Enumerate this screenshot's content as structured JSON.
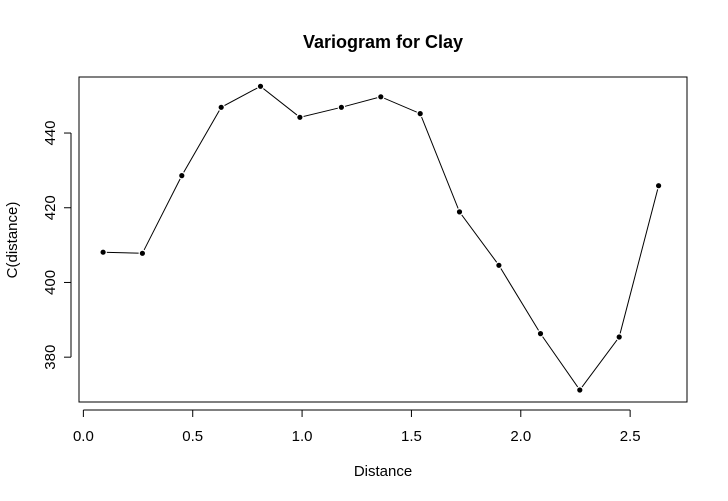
{
  "chart_data": {
    "type": "line",
    "title": "Variogram for Clay",
    "xlabel": "Distance",
    "ylabel": "C(distance)",
    "xlim": [
      -0.02,
      2.76
    ],
    "ylim": [
      368,
      455
    ],
    "x_ticks": [
      0.0,
      0.5,
      1.0,
      1.5,
      2.0,
      2.5
    ],
    "x_tick_labels": [
      "0.0",
      "0.5",
      "1.0",
      "1.5",
      "2.0",
      "2.5"
    ],
    "y_ticks": [
      380,
      400,
      420,
      440
    ],
    "y_tick_labels": [
      "380",
      "400",
      "420",
      "440"
    ],
    "grid": false,
    "series": [
      {
        "x": [
          0.09,
          0.27,
          0.45,
          0.63,
          0.81,
          0.99,
          1.18,
          1.36,
          1.54,
          1.72,
          1.9,
          2.09,
          2.27,
          2.45,
          2.63
        ],
        "y": [
          408.1,
          407.8,
          428.6,
          446.9,
          452.5,
          444.2,
          446.9,
          449.7,
          445.2,
          418.9,
          404.6,
          386.3,
          371.2,
          385.4,
          425.9
        ]
      }
    ]
  }
}
